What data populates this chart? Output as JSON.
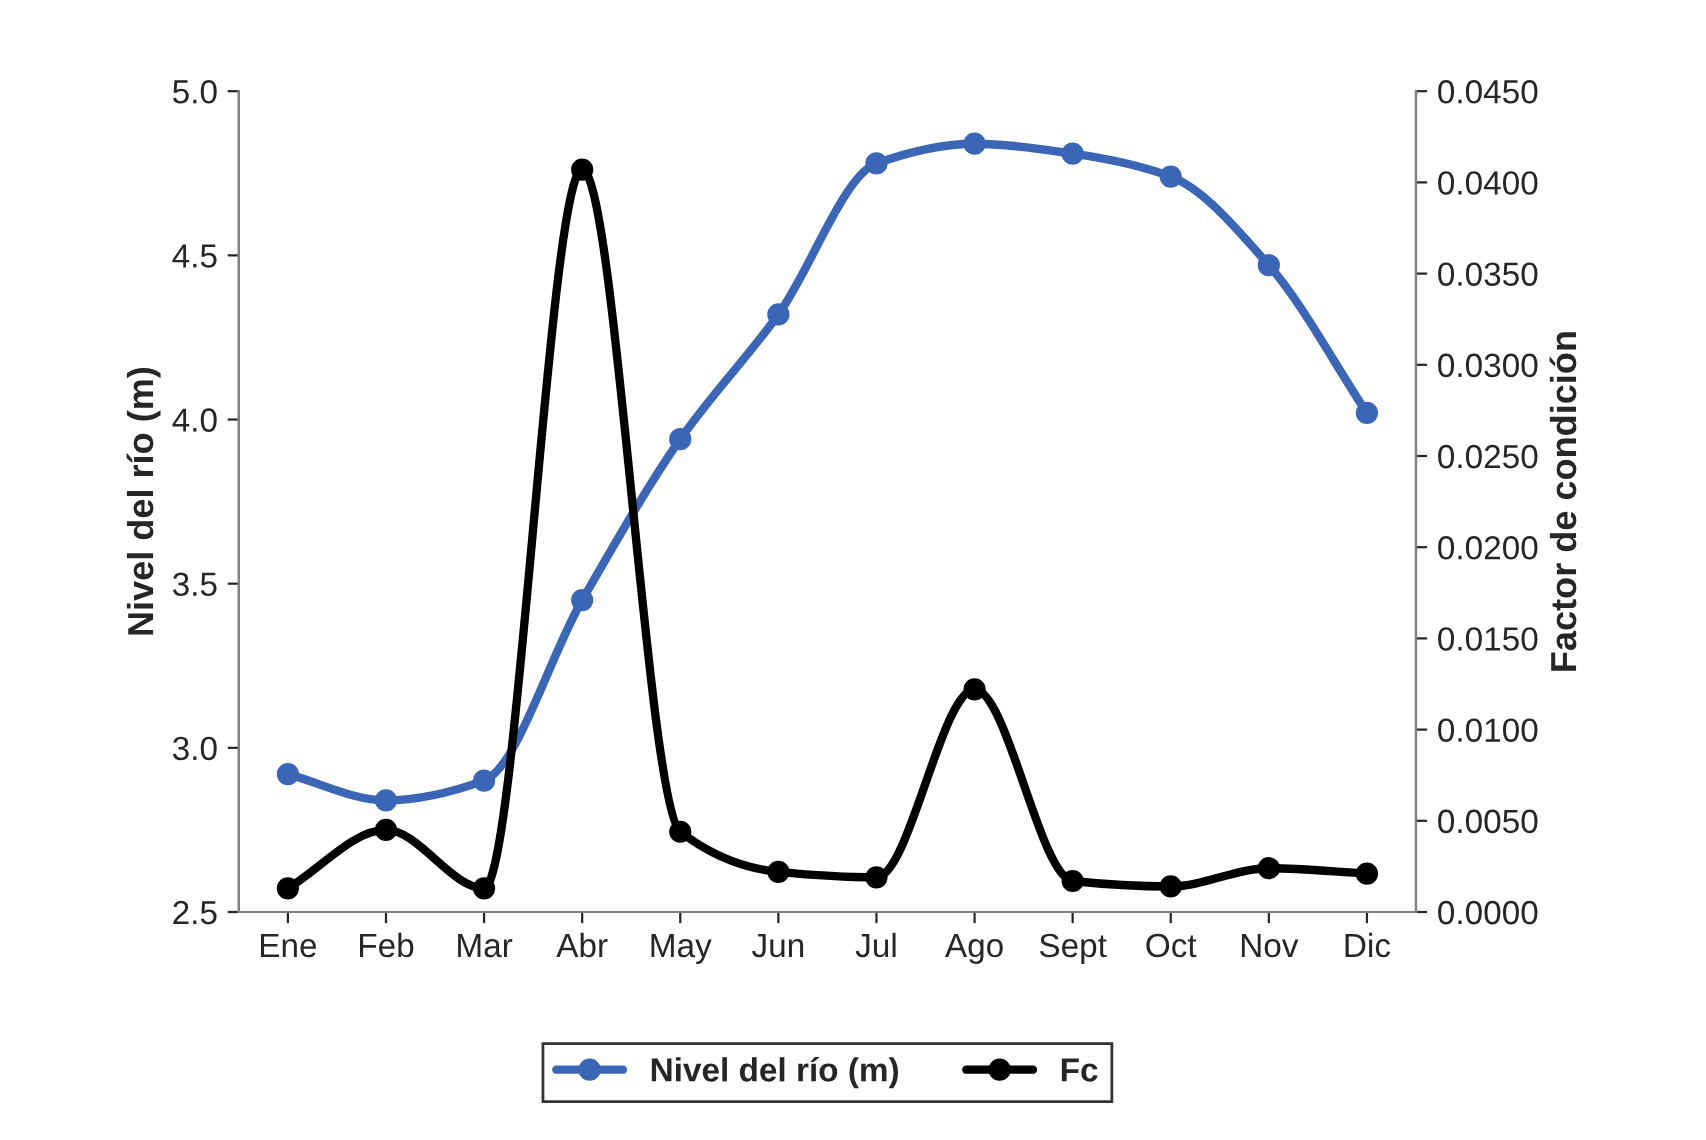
{
  "chart_data": {
    "type": "line",
    "ylabel": "Nivel del río (m)",
    "y2label": "Factor de condición",
    "categories": [
      "Ene",
      "Feb",
      "Mar",
      "Abr",
      "May",
      "Jun",
      "Jul",
      "Ago",
      "Sept",
      "Oct",
      "Nov",
      "Dic"
    ],
    "series": [
      {
        "name": "Nivel del río (m)",
        "color": "#3a66b5",
        "values": [
          2.92,
          2.84,
          2.9,
          3.45,
          3.94,
          4.32,
          4.78,
          4.84,
          4.81,
          4.74,
          4.47,
          4.02
        ]
      },
      {
        "name": "Fc",
        "color": "#000000",
        "axis": "y2",
        "values": [
          0.0013,
          0.0045,
          0.0013,
          0.0407,
          0.0044,
          0.0022,
          0.0019,
          0.0122,
          0.0017,
          0.0014,
          0.0024,
          0.0021
        ]
      }
    ],
    "ylim": [
      2.5,
      5.0
    ],
    "yticks": [
      2.5,
      {
        "value": 3,
        "label": "3.0"
      },
      3.5,
      {
        "value": 4,
        "label": "4.0"
      },
      4.5,
      {
        "value": 5,
        "label": "5.0"
      }
    ],
    "y2lim": [
      0,
      0.045
    ],
    "y2ticks": [
      {
        "value": 0,
        "label": "0.0000"
      },
      {
        "value": 0.005,
        "label": "0.0050"
      },
      {
        "value": 0.01,
        "label": "0.0100"
      },
      {
        "value": 0.015,
        "label": "0.0150"
      },
      {
        "value": 0.02,
        "label": "0.0200"
      },
      {
        "value": 0.025,
        "label": "0.0250"
      },
      {
        "value": 0.03,
        "label": "0.0300"
      },
      {
        "value": 0.035,
        "label": "0.0350"
      },
      {
        "value": 0.04,
        "label": "0.0400"
      },
      {
        "value": 0.045,
        "label": "0.0450"
      }
    ],
    "marker": "circle",
    "line_style": "solid",
    "grid": false,
    "legend": "bottom"
  }
}
